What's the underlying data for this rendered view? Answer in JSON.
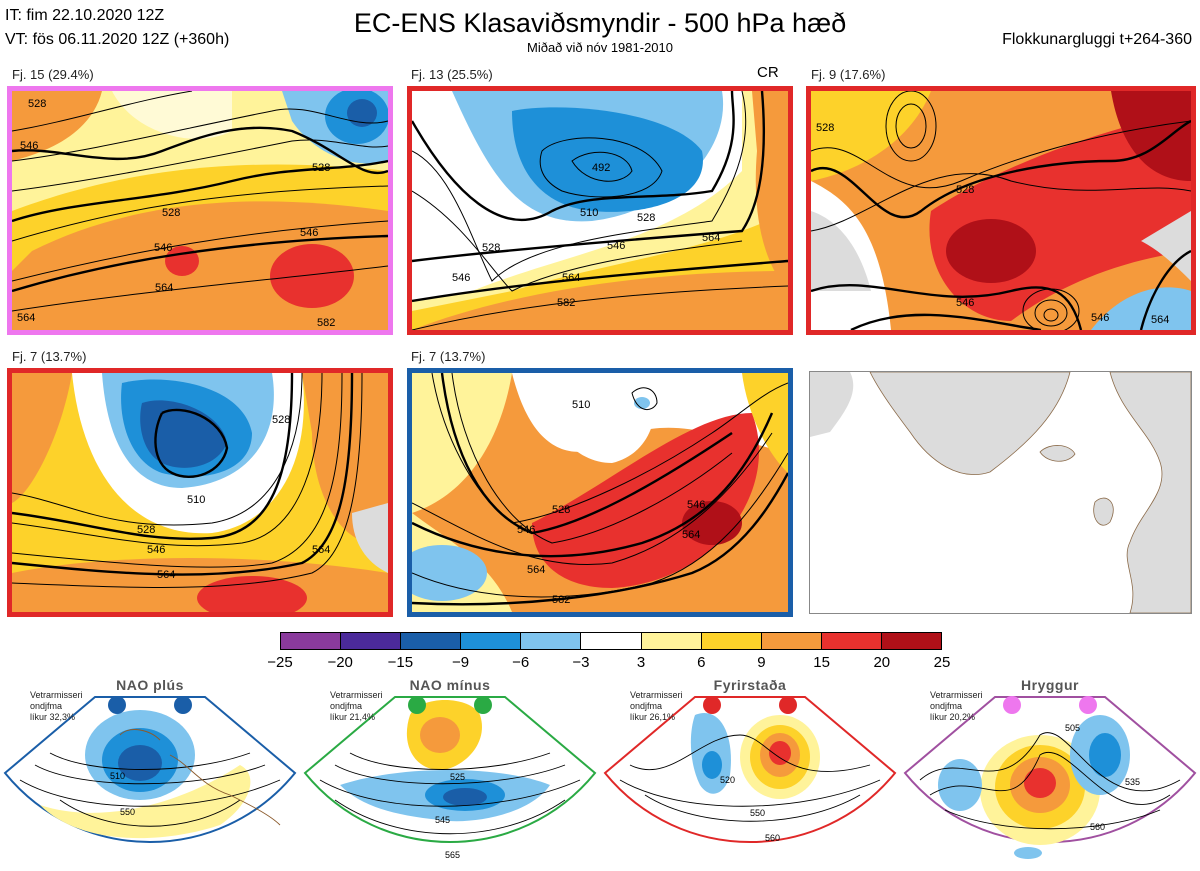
{
  "header": {
    "init_time": "IT: fim 22.10.2020 12Z",
    "valid_time": "VT: fös 06.11.2020 12Z  (+360h)",
    "title": "EC-ENS Klasaviðsmyndir - 500 hPa hæð",
    "subtitle": "Miðað við nóv 1981-2010",
    "window": "Flokkunargluggi t+264-360"
  },
  "panels": [
    {
      "label": "Fj. 15 (29.4%)",
      "border": "#ee77ee",
      "contours": [
        "528",
        "546",
        "528",
        "546",
        "564",
        "528",
        "546",
        "564",
        "582"
      ]
    },
    {
      "label": "Fj. 13 (25.5%)",
      "border": "#e02828",
      "extra": "CR",
      "contours": [
        "510",
        "528",
        "546",
        "564",
        "582",
        "492",
        "528",
        "546",
        "564"
      ]
    },
    {
      "label": "Fj. 9 (17.6%)",
      "border": "#e02828",
      "contours": [
        "528",
        "546",
        "528",
        "546",
        "564"
      ]
    },
    {
      "label": "Fj. 7 (13.7%)",
      "border": "#e02828",
      "contours": [
        "510",
        "528",
        "546",
        "564",
        "528",
        "564"
      ]
    },
    {
      "label": "Fj. 7 (13.7%)",
      "border": "#1a5ea8",
      "contours": [
        "510",
        "528",
        "546",
        "546",
        "564",
        "564",
        "582"
      ]
    }
  ],
  "colorbar": {
    "colors": [
      "#8a3a9c",
      "#4b2a9a",
      "#1a5ea8",
      "#1e90d8",
      "#7fc4ee",
      "#ffffff",
      "#fff39a",
      "#fdd22a",
      "#f59a3c",
      "#e8312e",
      "#b01018"
    ],
    "ticks": [
      "−25",
      "−20",
      "−15",
      "−9",
      "−6",
      "−3",
      "3",
      "6",
      "9",
      "15",
      "20",
      "25"
    ]
  },
  "regimes": [
    {
      "name": "NAO plús",
      "info": [
        "Vetrarmisseri",
        "ondjfma",
        "líkur 32,3%"
      ],
      "color": "#1a5ea8",
      "contours": [
        "510",
        "550"
      ]
    },
    {
      "name": "NAO mínus",
      "info": [
        "Vetrarmisseri",
        "ondjfma",
        "líkur 21,4%"
      ],
      "color": "#2aaa44",
      "contours": [
        "525",
        "545",
        "565"
      ]
    },
    {
      "name": "Fyrirstaða",
      "info": [
        "Vetrarmisseri",
        "ondjfma",
        "líkur 26,1%"
      ],
      "color": "#e02828",
      "contours": [
        "520",
        "550",
        "560"
      ]
    },
    {
      "name": "Hryggur",
      "info": [
        "Vetrarmisseri",
        "ondjfma",
        "líkur 20,2%"
      ],
      "color": "#a050a0",
      "contours": [
        "505",
        "535",
        "560"
      ]
    }
  ]
}
